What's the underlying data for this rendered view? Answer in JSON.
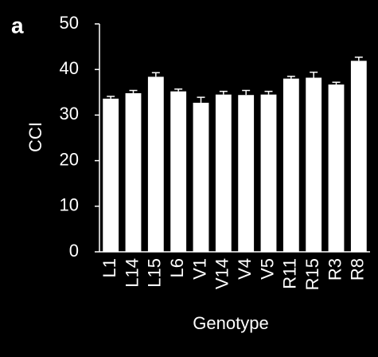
{
  "chart_data": {
    "type": "bar",
    "panel_label": "a",
    "x_label": "Genotype",
    "y_label": "CCI",
    "categories": [
      "L1",
      "L14",
      "L15",
      "L6",
      "V1",
      "V14",
      "V4",
      "V5",
      "R11",
      "R15",
      "R3",
      "R8"
    ],
    "values": [
      33.6,
      34.8,
      38.4,
      35.2,
      32.7,
      34.5,
      34.4,
      34.5,
      38.0,
      38.2,
      36.7,
      41.9
    ],
    "errors": [
      0.5,
      0.6,
      0.9,
      0.5,
      1.2,
      0.7,
      1.0,
      0.7,
      0.5,
      1.2,
      0.5,
      0.8
    ],
    "color": "#ffffff",
    "ylim": [
      0,
      50
    ],
    "yticks": [
      0,
      10,
      20,
      30,
      40,
      50
    ],
    "grid": false
  }
}
